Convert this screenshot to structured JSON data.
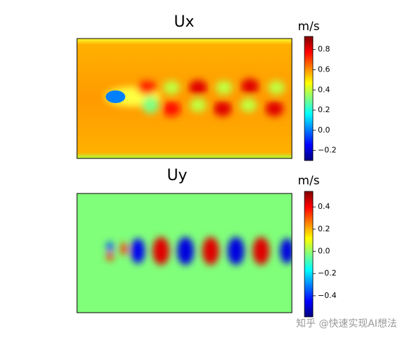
{
  "chart_data": [
    {
      "type": "heatmap",
      "title": "Ux",
      "colorbar_label": "m/s",
      "clim": [
        -0.3,
        0.93
      ],
      "cticks": [
        {
          "value": -0.2,
          "label": "−0.2"
        },
        {
          "value": 0.0,
          "label": "0.0"
        },
        0.2,
        0.4,
        0.6,
        0.8
      ]
    },
    {
      "type": "heatmap",
      "title": "Uy",
      "colorbar_label": "m/s",
      "clim": [
        -0.59,
        0.54
      ],
      "cticks": [
        {
          "value": -0.4,
          "label": "−0.4"
        },
        {
          "value": -0.2,
          "label": "−0.2"
        },
        {
          "value": 0.0,
          "label": "0.0"
        },
        0.2,
        0.4
      ]
    }
  ],
  "watermark": "知乎 @快速实现AI想法"
}
